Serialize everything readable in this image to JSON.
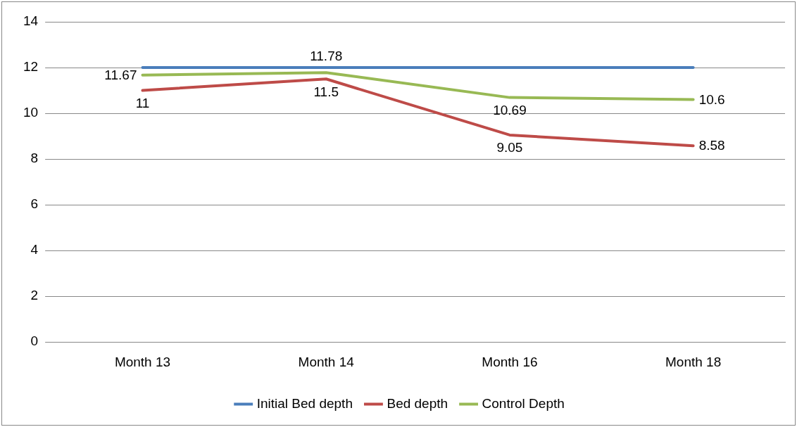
{
  "chart_data": {
    "type": "line",
    "categories": [
      "Month 13",
      "Month 14",
      "Month 16",
      "Month 18"
    ],
    "series": [
      {
        "name": "Initial Bed depth",
        "color": "#4a7ebb",
        "values": [
          12,
          12,
          12,
          12
        ]
      },
      {
        "name": "Bed depth",
        "color": "#be4b48",
        "values": [
          11,
          11.5,
          9.05,
          8.58
        ],
        "value_labels": [
          "11",
          "11.5",
          "9.05",
          "8.58"
        ]
      },
      {
        "name": "Control Depth",
        "color": "#98b954",
        "values": [
          11.67,
          11.78,
          10.69,
          10.6
        ],
        "value_labels": [
          "11.67",
          "11.78",
          "10.69",
          "10.6"
        ]
      }
    ],
    "ylim": [
      0,
      14
    ],
    "yticks": [
      0,
      2,
      4,
      6,
      8,
      10,
      12,
      14
    ],
    "grid": "y",
    "legend": "bottom",
    "marker": "none",
    "line_style": "solid"
  }
}
